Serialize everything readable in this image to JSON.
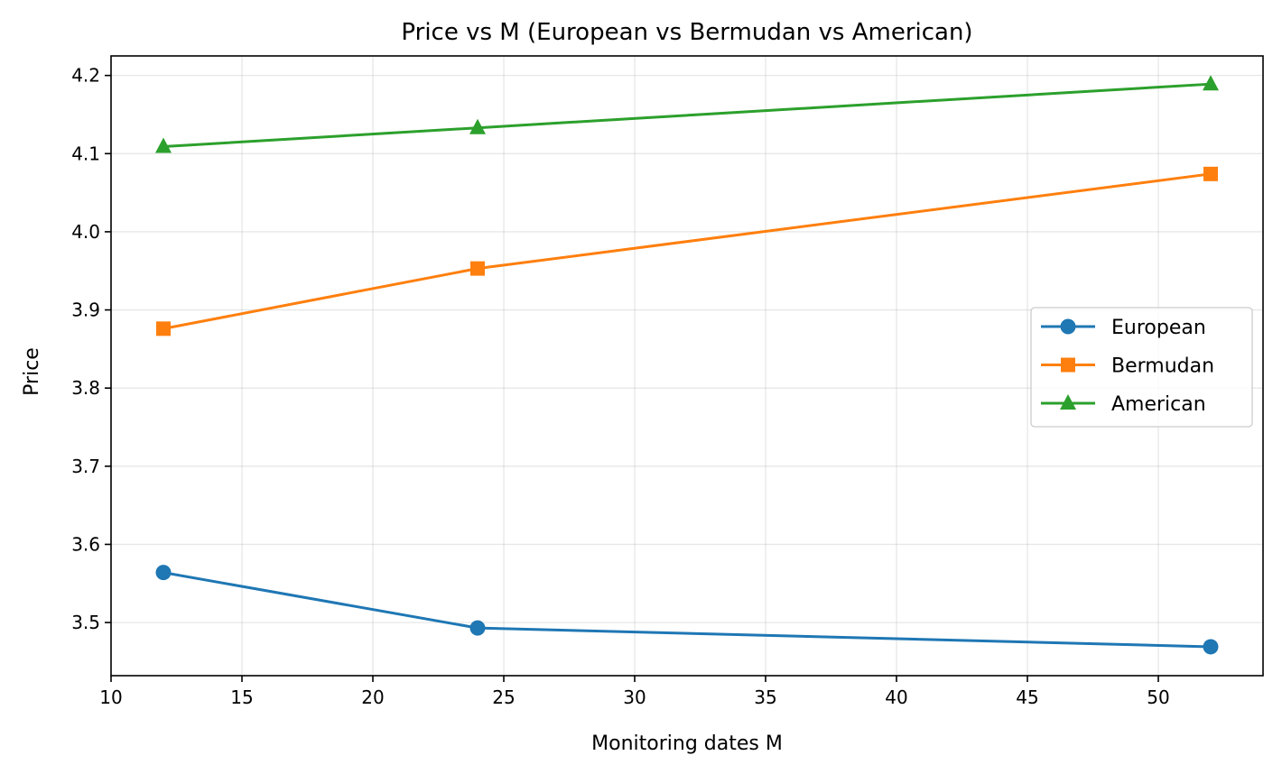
{
  "chart_data": {
    "type": "line",
    "title": "Price vs M (European vs Bermudan vs American)",
    "xlabel": "Monitoring dates M",
    "ylabel": "Price",
    "xlim": [
      10,
      54
    ],
    "ylim": [
      3.432,
      4.225
    ],
    "x_ticks": [
      10,
      15,
      20,
      25,
      30,
      35,
      40,
      45,
      50
    ],
    "y_ticks": [
      3.5,
      3.6,
      3.7,
      3.8,
      3.9,
      4.0,
      4.1,
      4.2
    ],
    "y_tick_labels": [
      "3.5",
      "3.6",
      "3.7",
      "3.8",
      "3.9",
      "4.0",
      "4.1",
      "4.2"
    ],
    "grid": true,
    "legend_position": "center-right",
    "x": [
      12,
      24,
      52
    ],
    "series": [
      {
        "name": "European",
        "values": [
          3.564,
          3.493,
          3.469
        ],
        "color": "#1f77b4",
        "marker": "circle"
      },
      {
        "name": "Bermudan",
        "values": [
          3.876,
          3.953,
          4.074
        ],
        "color": "#ff7f0e",
        "marker": "square"
      },
      {
        "name": "American",
        "values": [
          4.109,
          4.133,
          4.189
        ],
        "color": "#2ca02c",
        "marker": "triangle"
      }
    ]
  }
}
